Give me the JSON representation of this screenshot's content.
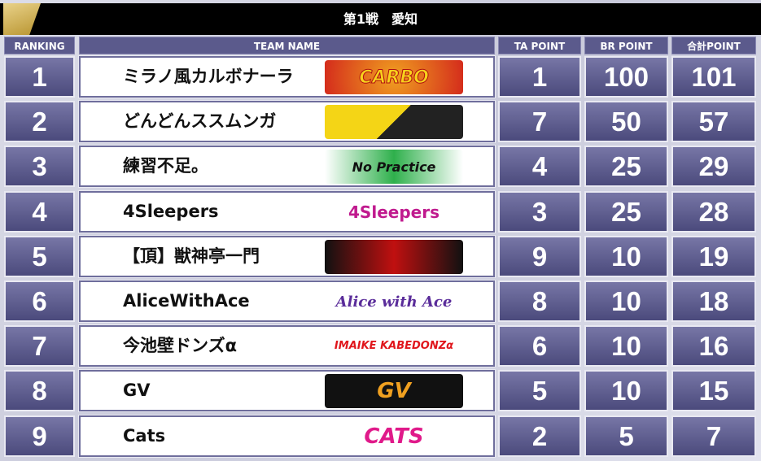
{
  "title": "第1戦　愛知",
  "headers": {
    "ranking": "RANKING",
    "team": "TEAM NAME",
    "ta": "TA POINT",
    "br": "BR POINT",
    "total": "合計POINT"
  },
  "colors": {
    "header_bg": "#5b5a8c",
    "cell_bg": "#5f5e90",
    "title_bg": "#000000",
    "accent_gold": "#c9a84a"
  },
  "rows": [
    {
      "rank": "1",
      "team": "ミラノ風カルボナーラ",
      "logo": "CARBO",
      "ta": "1",
      "br": "100",
      "total": "101"
    },
    {
      "rank": "2",
      "team": "どんどんススムンガ",
      "logo": "",
      "ta": "7",
      "br": "50",
      "total": "57"
    },
    {
      "rank": "3",
      "team": "練習不足。",
      "logo": "No Practice",
      "ta": "4",
      "br": "25",
      "total": "29"
    },
    {
      "rank": "4",
      "team": "4Sleepers",
      "logo": "4Sleepers",
      "ta": "3",
      "br": "25",
      "total": "28"
    },
    {
      "rank": "5",
      "team": "【頂】獣神亭一門",
      "logo": "",
      "ta": "9",
      "br": "10",
      "total": "19"
    },
    {
      "rank": "6",
      "team": "AliceWithAce",
      "logo": "Alice with Ace",
      "ta": "8",
      "br": "10",
      "total": "18"
    },
    {
      "rank": "7",
      "team": "今池壁ドンズα",
      "logo": "IMAIKE KABEDONZα",
      "ta": "6",
      "br": "10",
      "total": "16"
    },
    {
      "rank": "8",
      "team": "GV",
      "logo": "GV",
      "ta": "5",
      "br": "10",
      "total": "15"
    },
    {
      "rank": "9",
      "team": "Cats",
      "logo": "CATS",
      "ta": "2",
      "br": "5",
      "total": "7"
    }
  ]
}
